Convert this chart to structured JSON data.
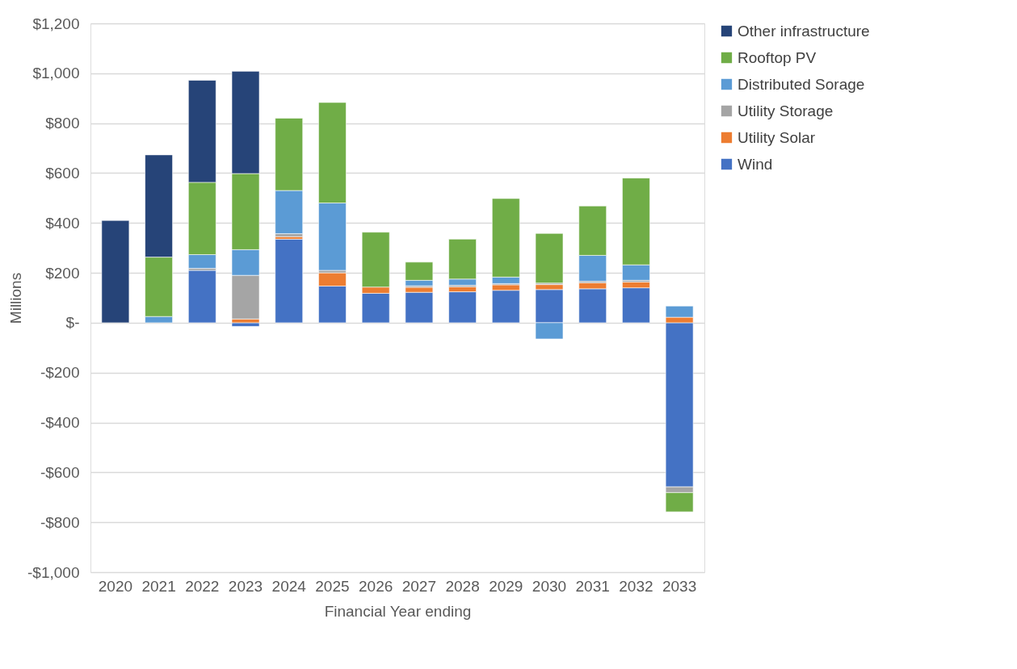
{
  "chart_data": {
    "type": "bar",
    "stacked": true,
    "ylabel": "Millions",
    "xlabel": "Financial Year ending",
    "categories": [
      "2020",
      "2021",
      "2022",
      "2023",
      "2024",
      "2025",
      "2026",
      "2027",
      "2028",
      "2029",
      "2030",
      "2031",
      "2032",
      "2033"
    ],
    "series": [
      {
        "name": "Wind",
        "color": "#4472c4",
        "values": [
          null,
          null,
          210,
          -15,
          335,
          147,
          118,
          122,
          124,
          130,
          133,
          136,
          140,
          -658
        ]
      },
      {
        "name": "Utility Solar",
        "color": "#ed7d31",
        "values": [
          null,
          null,
          null,
          15,
          10,
          53,
          25,
          20,
          20,
          22,
          20,
          24,
          23,
          22
        ]
      },
      {
        "name": "Utility Storage",
        "color": "#a5a5a5",
        "values": [
          null,
          null,
          8,
          175,
          12,
          10,
          null,
          6,
          6,
          5,
          6,
          6,
          7,
          -23
        ]
      },
      {
        "name": "Distributed Sorage",
        "color": "#5b9bd5",
        "values": [
          null,
          25,
          55,
          103,
          173,
          270,
          null,
          22,
          25,
          26,
          -65,
          104,
          62,
          45
        ]
      },
      {
        "name": "Rooftop PV",
        "color": "#70ad47",
        "values": [
          null,
          238,
          290,
          305,
          290,
          403,
          220,
          73,
          160,
          315,
          199,
          198,
          348,
          -77
        ]
      },
      {
        "name": "Other infrastructure",
        "color": "#264478",
        "values": [
          410,
          410,
          409,
          410,
          null,
          null,
          null,
          null,
          null,
          null,
          null,
          null,
          null,
          null
        ]
      }
    ],
    "ylim": [
      -1000,
      1200
    ],
    "yticks": [
      {
        "value": -1000,
        "label": "-$1,000"
      },
      {
        "value": -800,
        "label": "-$800"
      },
      {
        "value": -600,
        "label": "-$600"
      },
      {
        "value": -400,
        "label": "-$400"
      },
      {
        "value": -200,
        "label": "-$200"
      },
      {
        "value": 0,
        "label": "$-"
      },
      {
        "value": 200,
        "label": "$200"
      },
      {
        "value": 400,
        "label": "$400"
      },
      {
        "value": 600,
        "label": "$600"
      },
      {
        "value": 800,
        "label": "$800"
      },
      {
        "value": 1000,
        "label": "$1,000"
      },
      {
        "value": 1200,
        "label": "$1,200"
      }
    ],
    "grid": "y",
    "legend": "right"
  }
}
